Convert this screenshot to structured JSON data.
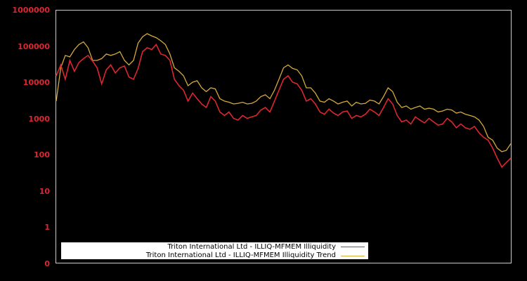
{
  "chart_data": {
    "type": "line",
    "title": "",
    "xlabel": "",
    "ylabel": "",
    "yscale": "log",
    "ylim": [
      0,
      1000000
    ],
    "y_ticks": [
      "1000000",
      "100000",
      "10000",
      "1000",
      "100",
      "10",
      "1",
      "0"
    ],
    "x_ticks": [],
    "grid": false,
    "legend_position": "lower-left",
    "background": "#000000",
    "axis_color": "#cccccc",
    "tick_label_color": "#dd2630",
    "series": [
      {
        "name": "Triton International Ltd - ILLIQ-MFMEM Illiquidity",
        "color": "#dd2630",
        "x_frac": [
          0.0,
          0.01,
          0.02,
          0.03,
          0.04,
          0.05,
          0.06,
          0.07,
          0.08,
          0.09,
          0.1,
          0.11,
          0.12,
          0.13,
          0.14,
          0.15,
          0.16,
          0.17,
          0.18,
          0.19,
          0.2,
          0.21,
          0.22,
          0.23,
          0.24,
          0.25,
          0.26,
          0.27,
          0.28,
          0.29,
          0.3,
          0.31,
          0.32,
          0.33,
          0.34,
          0.35,
          0.36,
          0.37,
          0.38,
          0.39,
          0.4,
          0.41,
          0.42,
          0.43,
          0.44,
          0.45,
          0.46,
          0.47,
          0.48,
          0.49,
          0.5,
          0.51,
          0.52,
          0.53,
          0.54,
          0.55,
          0.56,
          0.57,
          0.58,
          0.59,
          0.6,
          0.61,
          0.62,
          0.63,
          0.64,
          0.65,
          0.66,
          0.67,
          0.68,
          0.69,
          0.7,
          0.71,
          0.72,
          0.73,
          0.74,
          0.75,
          0.76,
          0.77,
          0.78,
          0.79,
          0.8,
          0.81,
          0.82,
          0.83,
          0.84,
          0.85,
          0.86,
          0.87,
          0.88,
          0.89,
          0.9,
          0.91,
          0.92,
          0.93,
          0.94,
          0.95,
          0.96,
          0.97,
          0.98,
          0.99,
          1.0
        ],
        "values": [
          15000,
          30000,
          12000,
          40000,
          20000,
          35000,
          45000,
          55000,
          38000,
          25000,
          9000,
          22000,
          30000,
          18000,
          25000,
          28000,
          14000,
          12000,
          24000,
          70000,
          90000,
          80000,
          110000,
          60000,
          55000,
          40000,
          12000,
          8000,
          6000,
          3000,
          5000,
          3500,
          2500,
          2000,
          4000,
          3000,
          1500,
          1200,
          1500,
          1000,
          900,
          1200,
          1000,
          1100,
          1200,
          1700,
          2000,
          1500,
          3000,
          6000,
          12000,
          15000,
          10000,
          9000,
          6000,
          3000,
          3500,
          2500,
          1500,
          1300,
          1800,
          1400,
          1200,
          1500,
          1600,
          1000,
          1200,
          1100,
          1300,
          1800,
          1500,
          1200,
          2000,
          3500,
          2500,
          1200,
          800,
          900,
          700,
          1100,
          900,
          750,
          1000,
          800,
          650,
          700,
          1000,
          800,
          550,
          700,
          550,
          500,
          600,
          400,
          300,
          250,
          150,
          80,
          45,
          60,
          80
        ]
      },
      {
        "name": "Triton International Ltd - ILLIQ-MFMEM Illiquidity Trend",
        "color": "#d4aa3a",
        "x_frac": [
          0.0,
          0.01,
          0.02,
          0.03,
          0.04,
          0.05,
          0.06,
          0.07,
          0.08,
          0.09,
          0.1,
          0.11,
          0.12,
          0.13,
          0.14,
          0.15,
          0.16,
          0.17,
          0.18,
          0.19,
          0.2,
          0.21,
          0.22,
          0.23,
          0.24,
          0.25,
          0.26,
          0.27,
          0.28,
          0.29,
          0.3,
          0.31,
          0.32,
          0.33,
          0.34,
          0.35,
          0.36,
          0.37,
          0.38,
          0.39,
          0.4,
          0.41,
          0.42,
          0.43,
          0.44,
          0.45,
          0.46,
          0.47,
          0.48,
          0.49,
          0.5,
          0.51,
          0.52,
          0.53,
          0.54,
          0.55,
          0.56,
          0.57,
          0.58,
          0.59,
          0.6,
          0.61,
          0.62,
          0.63,
          0.64,
          0.65,
          0.66,
          0.67,
          0.68,
          0.69,
          0.7,
          0.71,
          0.72,
          0.73,
          0.74,
          0.75,
          0.76,
          0.77,
          0.78,
          0.79,
          0.8,
          0.81,
          0.82,
          0.83,
          0.84,
          0.85,
          0.86,
          0.87,
          0.88,
          0.89,
          0.9,
          0.91,
          0.92,
          0.93,
          0.94,
          0.95,
          0.96,
          0.97,
          0.98,
          0.99,
          1.0
        ],
        "values": [
          3000,
          25000,
          55000,
          50000,
          80000,
          110000,
          130000,
          90000,
          40000,
          40000,
          45000,
          60000,
          55000,
          60000,
          70000,
          40000,
          30000,
          40000,
          120000,
          180000,
          220000,
          190000,
          170000,
          140000,
          110000,
          60000,
          25000,
          20000,
          15000,
          8000,
          10000,
          11000,
          7000,
          5500,
          7000,
          6500,
          3500,
          3000,
          2800,
          2500,
          2600,
          2800,
          2500,
          2600,
          3000,
          4000,
          4500,
          3500,
          6000,
          12000,
          25000,
          30000,
          24000,
          22000,
          15000,
          7000,
          7000,
          5000,
          3000,
          2800,
          3500,
          3000,
          2500,
          2800,
          3000,
          2200,
          2800,
          2500,
          2600,
          3200,
          3000,
          2500,
          4000,
          7000,
          5500,
          2800,
          2000,
          2200,
          1800,
          2000,
          2200,
          1800,
          1900,
          1800,
          1500,
          1600,
          1800,
          1700,
          1400,
          1500,
          1300,
          1200,
          1100,
          900,
          600,
          300,
          250,
          150,
          120,
          130,
          200
        ]
      }
    ]
  },
  "legend": {
    "items": [
      {
        "label": "Triton International Ltd - ILLIQ-MFMEM Illiquidity",
        "color": "#dd2630"
      },
      {
        "label": "Triton International Ltd - ILLIQ-MFMEM Illiquidity Trend",
        "color": "#d4aa3a"
      }
    ]
  },
  "y_axis": {
    "labels": [
      "1000000",
      "100000",
      "10000",
      "1000",
      "100",
      "10",
      "1",
      "0"
    ]
  }
}
